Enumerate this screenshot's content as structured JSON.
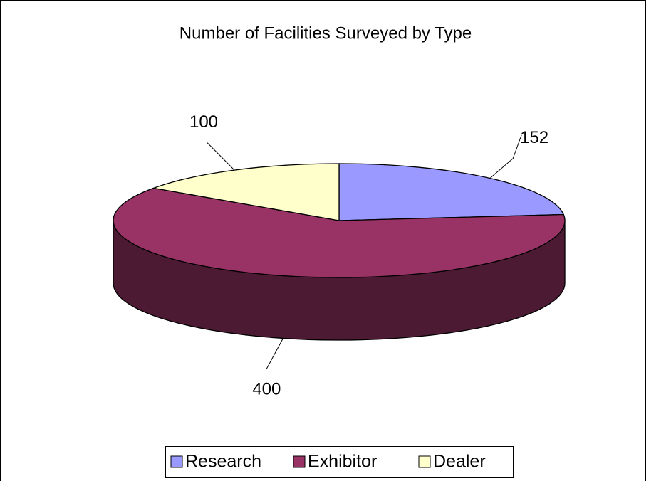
{
  "chart_data": {
    "type": "pie3d",
    "title": "Number of Facilities Surveyed by Type",
    "categories": [
      "Research",
      "Exhibitor",
      "Dealer"
    ],
    "values": [
      152,
      400,
      100
    ],
    "colors": [
      "#9999ff",
      "#993366",
      "#ffffcc"
    ],
    "legend": "bottom"
  }
}
